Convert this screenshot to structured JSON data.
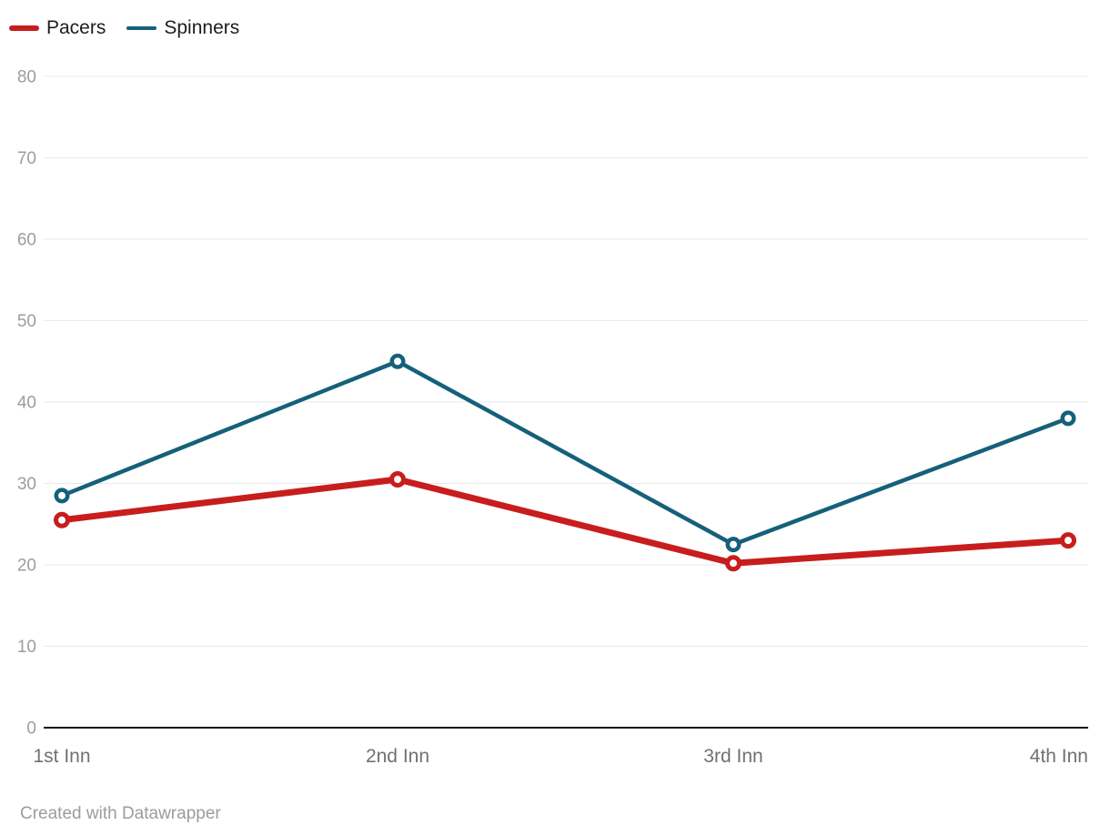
{
  "chart_data": {
    "type": "line",
    "categories": [
      "1st Inn",
      "2nd Inn",
      "3rd Inn",
      "4th Inn"
    ],
    "series": [
      {
        "name": "Pacers",
        "color": "#c71e1d",
        "line_width": 7,
        "marker_radius": 6.5,
        "marker_stroke": 5,
        "values": [
          25.5,
          30.5,
          20.2,
          23
        ]
      },
      {
        "name": "Spinners",
        "color": "#15607a",
        "line_width": 4.5,
        "marker_radius": 6.25,
        "marker_stroke": 4.5,
        "values": [
          28.5,
          45,
          22.5,
          38
        ]
      }
    ],
    "ylim": [
      0,
      80
    ],
    "yticks": [
      0,
      10,
      20,
      30,
      40,
      50,
      60,
      70,
      80
    ],
    "grid": true,
    "legend_position": "top-left",
    "marker_style": "open-circle",
    "grid_color": "#e9e9e9",
    "baseline_color": "#141414"
  },
  "footer": {
    "attribution": "Created with Datawrapper"
  }
}
